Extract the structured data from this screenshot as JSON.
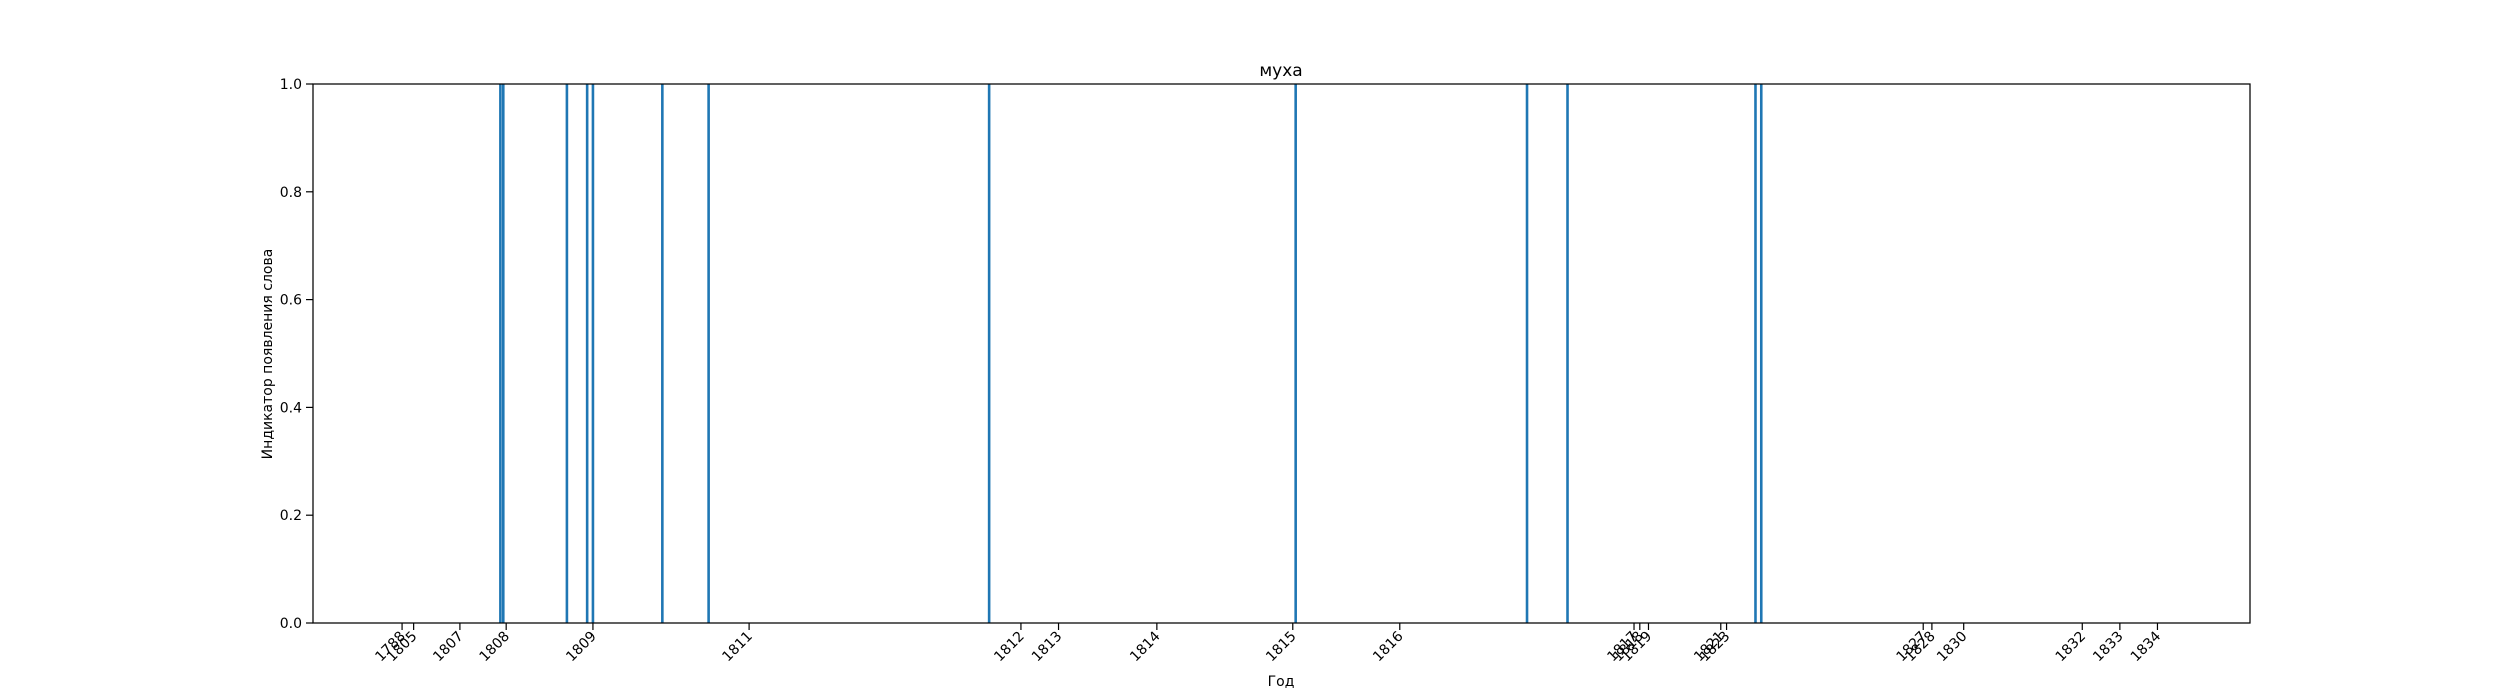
{
  "chart_data": {
    "type": "bar",
    "title": "муха",
    "xlabel": "Год",
    "ylabel": "Индикатор появления слова",
    "ylim": [
      0,
      1
    ],
    "yticks": [
      "0.0",
      "0.2",
      "0.4",
      "0.6",
      "0.8",
      "1.0"
    ],
    "xlim": [
      1802.96,
      1836.45
    ],
    "grid": false,
    "color": "#1f77b4",
    "xticks": [
      {
        "value": 1804.5,
        "label": "1788"
      },
      {
        "value": 1804.7,
        "label": "1805"
      },
      {
        "value": 1805.5,
        "label": "1807"
      },
      {
        "value": 1806.3,
        "label": "1808"
      },
      {
        "value": 1807.8,
        "label": "1809"
      },
      {
        "value": 1810.5,
        "label": "1811"
      },
      {
        "value": 1815.2,
        "label": "1812"
      },
      {
        "value": 1815.85,
        "label": "1813"
      },
      {
        "value": 1817.55,
        "label": "1814"
      },
      {
        "value": 1819.9,
        "label": "1815"
      },
      {
        "value": 1821.75,
        "label": "1816"
      },
      {
        "value": 1825.8,
        "label": "1817"
      },
      {
        "value": 1825.9,
        "label": "1818"
      },
      {
        "value": 1826.05,
        "label": "1819"
      },
      {
        "value": 1827.3,
        "label": "1821"
      },
      {
        "value": 1827.4,
        "label": "1823"
      },
      {
        "value": 1830.8,
        "label": "1827"
      },
      {
        "value": 1830.95,
        "label": "1828"
      },
      {
        "value": 1831.5,
        "label": "1830"
      },
      {
        "value": 1833.55,
        "label": "1832"
      },
      {
        "value": 1834.2,
        "label": "1833"
      },
      {
        "value": 1834.85,
        "label": "1834"
      }
    ],
    "series": [
      {
        "x": [
          1806.2,
          1806.25,
          1807.35,
          1807.7,
          1807.8,
          1809.0,
          1809.8,
          1814.65,
          1819.95,
          1823.95,
          1824.65,
          1827.9,
          1828.0
        ],
        "values": [
          1,
          1,
          1,
          1,
          1,
          1,
          1,
          1,
          1,
          1,
          1,
          1,
          1
        ]
      }
    ]
  }
}
